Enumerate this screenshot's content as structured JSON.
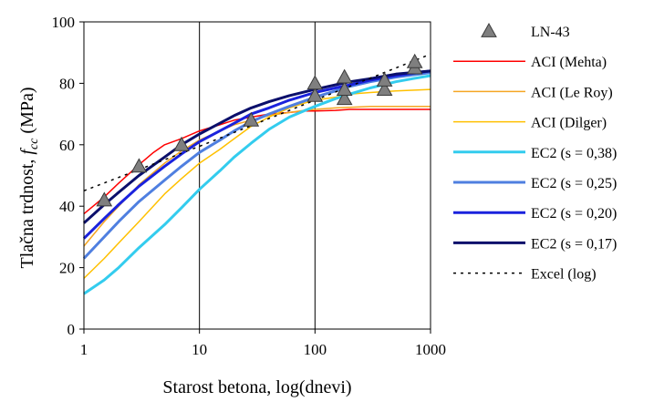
{
  "chart_data": {
    "type": "line",
    "xlabel": "Starost betona, log(dnevi)",
    "ylabel": {
      "main": "Tlačna trdnost, ",
      "var": "f",
      "sub": "cc",
      "unit": " (MPa)"
    },
    "x_scale": "log",
    "xlim": [
      1,
      1000
    ],
    "ylim": [
      0,
      100
    ],
    "x_ticks": [
      1,
      10,
      100,
      1000
    ],
    "y_ticks": [
      0,
      20,
      40,
      60,
      80,
      100
    ],
    "grid": "vertical",
    "legend_position": "right",
    "series": [
      {
        "name": "LN-43",
        "kind": "markers",
        "marker": "triangle",
        "color": "#7f7f7f",
        "x": [
          1.5,
          3,
          7,
          28,
          100,
          100,
          180,
          180,
          180,
          400,
          400,
          730,
          730
        ],
        "y": [
          42,
          53,
          60,
          68,
          76,
          80,
          75,
          78,
          82,
          78,
          81,
          85,
          87
        ]
      },
      {
        "name": "ACI (Mehta)",
        "kind": "line",
        "color": "#ff0000",
        "width": 1.5,
        "x": [
          1,
          1.5,
          2,
          3,
          4,
          5,
          7,
          10,
          15,
          20,
          28,
          40,
          60,
          80,
          100,
          150,
          200,
          300,
          500,
          1000
        ],
        "y": [
          37.5,
          43,
          47.5,
          53.5,
          57.5,
          60,
          62,
          64.5,
          66.5,
          68,
          69,
          70,
          70.5,
          71,
          71,
          71.2,
          71.5,
          71.5,
          71.5,
          71.5
        ]
      },
      {
        "name": "ACI (Le Roy)",
        "kind": "line",
        "color": "#f5a623",
        "width": 1.5,
        "x": [
          1,
          1.5,
          2,
          3,
          5,
          7,
          10,
          15,
          20,
          28,
          40,
          60,
          80,
          100,
          150,
          200,
          300,
          500,
          1000
        ],
        "y": [
          27,
          35,
          40,
          47,
          54,
          58,
          61.5,
          64.5,
          66.5,
          68,
          69.5,
          70.5,
          71.2,
          71.5,
          72,
          72.2,
          72.5,
          72.5,
          72.5
        ]
      },
      {
        "name": "ACI (Dilger)",
        "kind": "line",
        "color": "#ffc000",
        "width": 1.5,
        "x": [
          1,
          1.5,
          2,
          3,
          5,
          7,
          10,
          15,
          20,
          28,
          40,
          60,
          80,
          100,
          150,
          200,
          300,
          500,
          1000
        ],
        "y": [
          16.5,
          23,
          28,
          35,
          44,
          49,
          54,
          58.5,
          62,
          66,
          69,
          72,
          73.5,
          74.5,
          75.5,
          76.5,
          77,
          77.5,
          78
        ]
      },
      {
        "name": "EC2 (s = 0,38)",
        "kind": "line",
        "color": "#33ccee",
        "width": 3,
        "x": [
          1,
          1.5,
          2,
          3,
          5,
          7,
          10,
          15,
          20,
          28,
          40,
          60,
          80,
          100,
          150,
          200,
          300,
          500,
          700,
          1000
        ],
        "y": [
          11.5,
          16,
          20,
          26.5,
          34,
          39.5,
          45.5,
          51.5,
          56,
          60.5,
          65,
          69,
          71,
          72.5,
          75,
          76.5,
          78.5,
          80.5,
          81.5,
          82.5
        ]
      },
      {
        "name": "EC2 (s = 0,25)",
        "kind": "line",
        "color": "#4f7fe0",
        "width": 3,
        "x": [
          1,
          1.5,
          2,
          3,
          5,
          7,
          10,
          15,
          20,
          28,
          40,
          60,
          100,
          150,
          200,
          300,
          500,
          1000
        ],
        "y": [
          23,
          30,
          35,
          41.5,
          48.5,
          53,
          57.5,
          61.5,
          64.5,
          67.5,
          70,
          72.5,
          75.5,
          77.5,
          79,
          80.5,
          82,
          83.5
        ]
      },
      {
        "name": "EC2 (s = 0,20)",
        "kind": "line",
        "color": "#1a22dd",
        "width": 3,
        "x": [
          1,
          1.5,
          2,
          3,
          5,
          7,
          10,
          15,
          20,
          28,
          40,
          60,
          100,
          150,
          200,
          300,
          500,
          1000
        ],
        "y": [
          29.5,
          36,
          40.5,
          46.5,
          53,
          57,
          61,
          64.5,
          67,
          70,
          72,
          74.5,
          77,
          78.5,
          79.5,
          81,
          82.5,
          84
        ]
      },
      {
        "name": "EC2 (s = 0,17)",
        "kind": "line",
        "color": "#0b0f6b",
        "width": 3,
        "x": [
          1,
          1.5,
          2,
          3,
          5,
          7,
          10,
          15,
          20,
          28,
          40,
          60,
          100,
          150,
          200,
          300,
          500,
          1000
        ],
        "y": [
          34.5,
          40.5,
          44.5,
          50,
          56,
          60,
          63.5,
          67,
          69.5,
          72,
          74,
          76,
          78,
          79.5,
          80.5,
          81.5,
          83,
          84
        ]
      },
      {
        "name": "Excel (log)",
        "kind": "line",
        "color": "#000000",
        "width": 1.5,
        "dash": "3,5",
        "x": [
          1,
          10,
          100,
          1000
        ],
        "y": [
          45,
          59.5,
          74.5,
          89.5
        ]
      }
    ]
  }
}
